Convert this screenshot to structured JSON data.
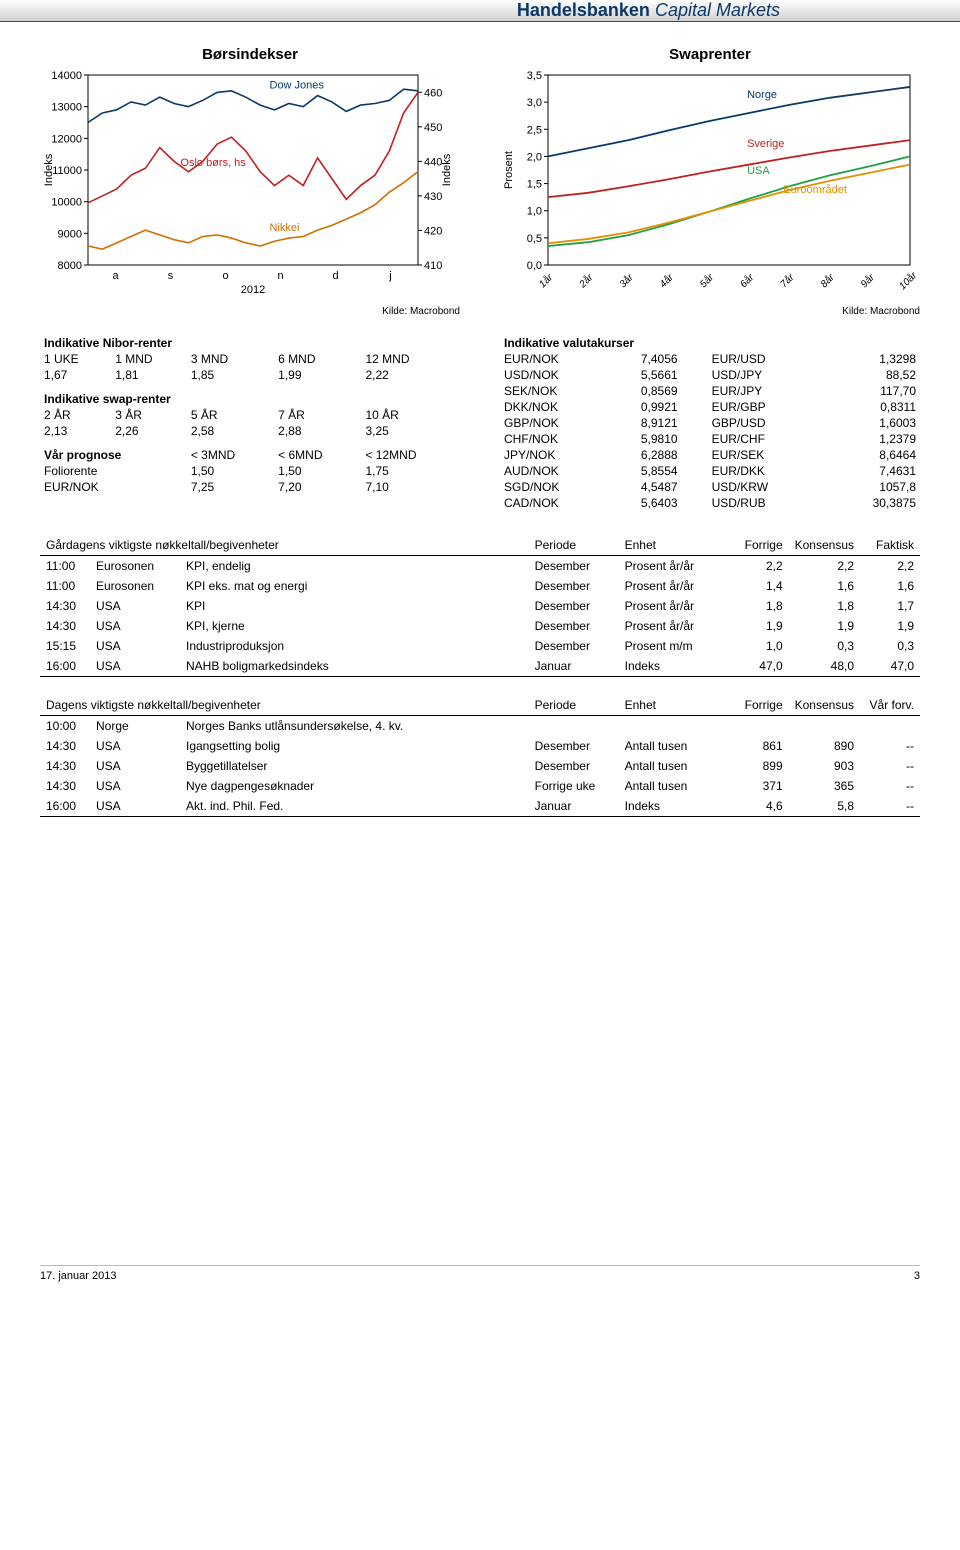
{
  "header": {
    "brand_main": "Handelsbanken",
    "brand_sub": "Capital Markets"
  },
  "chart_borsindekser": {
    "title": "Børsindekser",
    "type": "line",
    "x_labels": [
      "a",
      "s",
      "o",
      "n",
      "d",
      "j"
    ],
    "x_year": "2012",
    "y_left": {
      "min": 8000,
      "max": 14000,
      "ticks": [
        8000,
        9000,
        10000,
        11000,
        12000,
        13000,
        14000
      ],
      "label": "Indeks"
    },
    "y_right": {
      "min": 410,
      "max": 465,
      "ticks": [
        410,
        420,
        430,
        440,
        450,
        460
      ],
      "label": "Indeks"
    },
    "series": [
      {
        "name": "Dow Jones",
        "color": "#0a3a6a",
        "axis": "left",
        "label_x": 0.55,
        "label_y": 0.07,
        "points": [
          12500,
          12800,
          12900,
          13150,
          13050,
          13300,
          13100,
          13000,
          13200,
          13450,
          13500,
          13300,
          13050,
          12900,
          13100,
          13000,
          13350,
          13150,
          12850,
          13050,
          13100,
          13200,
          13550,
          13500
        ]
      },
      {
        "name": "Oslo børs, hs",
        "color": "#c02020",
        "axis": "right",
        "label_x": 0.28,
        "label_y": 0.48,
        "points": [
          428,
          430,
          432,
          436,
          438,
          444,
          440,
          437,
          440,
          445,
          447,
          443,
          437,
          433,
          436,
          433,
          441,
          435,
          429,
          433,
          436,
          443,
          454,
          460
        ]
      },
      {
        "name": "Nikkei",
        "color": "#d07000",
        "axis": "left",
        "label_x": 0.55,
        "label_y": 0.82,
        "points": [
          8600,
          8500,
          8700,
          8900,
          9100,
          8950,
          8800,
          8700,
          8900,
          8950,
          8850,
          8700,
          8600,
          8750,
          8850,
          8900,
          9100,
          9250,
          9450,
          9650,
          9900,
          10300,
          10600,
          10950
        ]
      }
    ],
    "source": "Kilde: Macrobond",
    "bg_color": "#ffffff",
    "frame_color": "#000000",
    "grid": false
  },
  "chart_swaprenter": {
    "title": "Swaprenter",
    "type": "line",
    "x_labels": [
      "1år",
      "2år",
      "3år",
      "4år",
      "5år",
      "6år",
      "7år",
      "8år",
      "9år",
      "10år"
    ],
    "y_left": {
      "min": 0,
      "max": 3.5,
      "ticks": [
        0,
        0.5,
        1,
        1.5,
        2,
        2.5,
        3,
        3.5
      ],
      "label": "Prosent"
    },
    "series": [
      {
        "name": "Norge",
        "color": "#0a3a6a",
        "label_x": 0.55,
        "label_y": 0.12,
        "points": [
          2.0,
          2.15,
          2.3,
          2.48,
          2.65,
          2.8,
          2.95,
          3.08,
          3.18,
          3.28
        ]
      },
      {
        "name": "Sverige",
        "color": "#c02020",
        "label_x": 0.55,
        "label_y": 0.38,
        "points": [
          1.25,
          1.33,
          1.45,
          1.58,
          1.72,
          1.85,
          1.98,
          2.1,
          2.2,
          2.3
        ]
      },
      {
        "name": "USA",
        "color": "#20a040",
        "label_x": 0.55,
        "label_y": 0.52,
        "points": [
          0.35,
          0.42,
          0.55,
          0.75,
          0.98,
          1.22,
          1.45,
          1.65,
          1.82,
          2.0
        ]
      },
      {
        "name": "Euroområdet",
        "color": "#e09000",
        "label_x": 0.65,
        "label_y": 0.62,
        "points": [
          0.4,
          0.48,
          0.6,
          0.78,
          0.98,
          1.18,
          1.38,
          1.55,
          1.7,
          1.85
        ]
      }
    ],
    "source": "Kilde: Macrobond",
    "bg_color": "#ffffff",
    "frame_color": "#000000",
    "grid": false
  },
  "nibor": {
    "title": "Indikative Nibor-renter",
    "headers": [
      "1 UKE",
      "1 MND",
      "3 MND",
      "6 MND",
      "12 MND"
    ],
    "values": [
      "1,67",
      "1,81",
      "1,85",
      "1,99",
      "2,22"
    ]
  },
  "swap": {
    "title": "Indikative swap-renter",
    "headers": [
      "2 ÅR",
      "3 ÅR",
      "5 ÅR",
      "7 ÅR",
      "10 ÅR"
    ],
    "values": [
      "2,13",
      "2,26",
      "2,58",
      "2,88",
      "3,25"
    ]
  },
  "prognose": {
    "title": "Vår prognose",
    "headers": [
      "< 3MND",
      "< 6MND",
      "< 12MND"
    ],
    "rows": [
      {
        "label": "Foliorente",
        "v": [
          "1,50",
          "1,50",
          "1,75"
        ]
      },
      {
        "label": "EUR/NOK",
        "v": [
          "7,25",
          "7,20",
          "7,10"
        ]
      }
    ]
  },
  "valuta": {
    "title": "Indikative valutakurser",
    "rows": [
      [
        "EUR/NOK",
        "7,4056",
        "EUR/USD",
        "1,3298"
      ],
      [
        "USD/NOK",
        "5,5661",
        "USD/JPY",
        "88,52"
      ],
      [
        "SEK/NOK",
        "0,8569",
        "EUR/JPY",
        "117,70"
      ],
      [
        "DKK/NOK",
        "0,9921",
        "EUR/GBP",
        "0,8311"
      ],
      [
        "GBP/NOK",
        "8,9121",
        "GBP/USD",
        "1,6003"
      ],
      [
        "CHF/NOK",
        "5,9810",
        "EUR/CHF",
        "1,2379"
      ],
      [
        "JPY/NOK",
        "6,2888",
        "EUR/SEK",
        "8,6464"
      ],
      [
        "AUD/NOK",
        "5,8554",
        "EUR/DKK",
        "7,4631"
      ],
      [
        "SGD/NOK",
        "4,5487",
        "USD/KRW",
        "1057,8"
      ],
      [
        "CAD/NOK",
        "5,6403",
        "USD/RUB",
        "30,3875"
      ]
    ]
  },
  "yesterday": {
    "title": "Gårdagens viktigste nøkkeltall/begivenheter",
    "cols": [
      "Periode",
      "Enhet",
      "Forrige",
      "Konsensus",
      "Faktisk"
    ],
    "rows": [
      [
        "11:00",
        "Eurosonen",
        "KPI, endelig",
        "Desember",
        "Prosent år/år",
        "2,2",
        "2,2",
        "2,2"
      ],
      [
        "11:00",
        "Eurosonen",
        "KPI eks. mat og energi",
        "Desember",
        "Prosent år/år",
        "1,4",
        "1,6",
        "1,6"
      ],
      [
        "14:30",
        "USA",
        "KPI",
        "Desember",
        "Prosent år/år",
        "1,8",
        "1,8",
        "1,7"
      ],
      [
        "14:30",
        "USA",
        "KPI, kjerne",
        "Desember",
        "Prosent år/år",
        "1,9",
        "1,9",
        "1,9"
      ],
      [
        "15:15",
        "USA",
        "Industriproduksjon",
        "Desember",
        "Prosent m/m",
        "1,0",
        "0,3",
        "0,3"
      ],
      [
        "16:00",
        "USA",
        "NAHB boligmarkedsindeks",
        "Januar",
        "Indeks",
        "47,0",
        "48,0",
        "47,0"
      ]
    ]
  },
  "today": {
    "title": "Dagens viktigste nøkkeltall/begivenheter",
    "cols": [
      "Periode",
      "Enhet",
      "Forrige",
      "Konsensus",
      "Vår forv."
    ],
    "rows": [
      [
        "10:00",
        "Norge",
        "Norges Banks utlånsundersøkelse, 4. kv.",
        "",
        "",
        "",
        "",
        ""
      ],
      [
        "14:30",
        "USA",
        "Igangsetting bolig",
        "Desember",
        "Antall tusen",
        "861",
        "890",
        "--"
      ],
      [
        "14:30",
        "USA",
        "Byggetillatelser",
        "Desember",
        "Antall tusen",
        "899",
        "903",
        "--"
      ],
      [
        "14:30",
        "USA",
        "Nye dagpengesøknader",
        "Forrige uke",
        "Antall tusen",
        "371",
        "365",
        "--"
      ],
      [
        "16:00",
        "USA",
        "Akt. ind. Phil. Fed.",
        "Januar",
        "Indeks",
        "4,6",
        "5,8",
        "--"
      ]
    ]
  },
  "footer": {
    "date": "17. januar 2013",
    "page": "3"
  }
}
